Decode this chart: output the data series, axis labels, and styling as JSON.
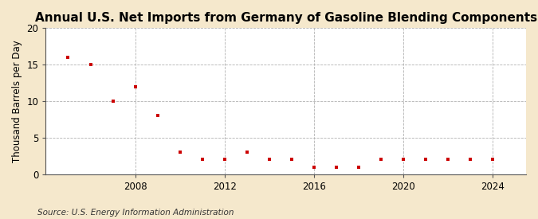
{
  "title": "Annual U.S. Net Imports from Germany of Gasoline Blending Components",
  "ylabel": "Thousand Barrels per Day",
  "source": "Source: U.S. Energy Information Administration",
  "years": [
    2005,
    2006,
    2007,
    2008,
    2009,
    2010,
    2011,
    2012,
    2013,
    2014,
    2015,
    2016,
    2017,
    2018,
    2019,
    2020,
    2021,
    2022,
    2023,
    2024
  ],
  "values": [
    16,
    15,
    10,
    12,
    8,
    3,
    2,
    2,
    3,
    2,
    2,
    1,
    1,
    1,
    2,
    2,
    2,
    2,
    2,
    2
  ],
  "marker_color": "#cc0000",
  "marker": "s",
  "marker_size": 3.5,
  "background_color": "#f5e8cc",
  "plot_bg_color": "#ffffff",
  "grid_color": "#aaaaaa",
  "ylim": [
    0,
    20
  ],
  "yticks": [
    0,
    5,
    10,
    15,
    20
  ],
  "xticks": [
    2008,
    2012,
    2016,
    2020,
    2024
  ],
  "xlim": [
    2004.0,
    2025.5
  ],
  "title_fontsize": 11,
  "label_fontsize": 8.5,
  "tick_fontsize": 8.5,
  "source_fontsize": 7.5
}
